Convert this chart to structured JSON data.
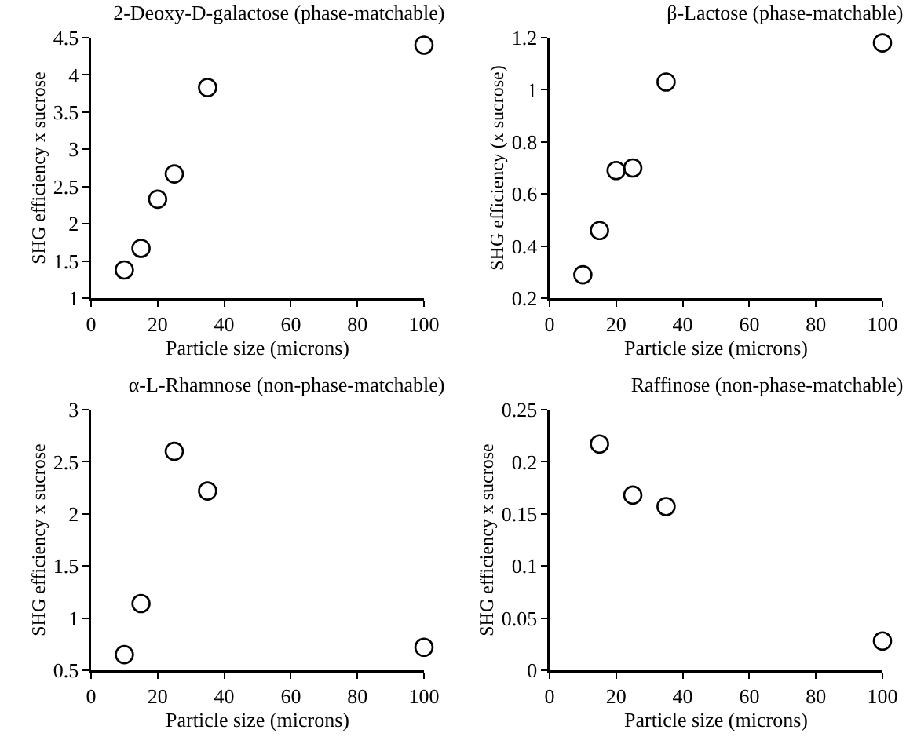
{
  "chart_data": [
    {
      "type": "scatter",
      "title": "2-Deoxy-D-galactose (phase-matchable)",
      "xlabel": "Particle size (microns)",
      "ylabel": "SHG efficiency x sucrose",
      "x": [
        10,
        15,
        20,
        25,
        35,
        100
      ],
      "values": [
        1.38,
        1.67,
        2.33,
        2.67,
        3.83,
        4.4
      ],
      "color": "#000000",
      "marker": "circle",
      "xlim": [
        0,
        100
      ],
      "xticks": [
        0,
        20,
        40,
        60,
        80,
        100
      ],
      "ylim": [
        1,
        4.5
      ],
      "yticks": [
        1,
        1.5,
        2,
        2.5,
        3,
        3.5,
        4,
        4.5
      ]
    },
    {
      "type": "scatter",
      "title": "β-Lactose (phase-matchable)",
      "xlabel": "Particle size (microns)",
      "ylabel": "SHG efficiency (x sucrose)",
      "x": [
        10,
        15,
        20,
        25,
        35,
        100
      ],
      "values": [
        0.29,
        0.46,
        0.69,
        0.7,
        1.03,
        1.18
      ],
      "color": "#000000",
      "marker": "circle",
      "xlim": [
        0,
        100
      ],
      "xticks": [
        0,
        20,
        40,
        60,
        80,
        100
      ],
      "ylim": [
        0.2,
        1.2
      ],
      "yticks": [
        0.2,
        0.4,
        0.6,
        0.8,
        1,
        1.2
      ]
    },
    {
      "type": "scatter",
      "title": "α-L-Rhamnose (non-phase-matchable)",
      "xlabel": "Particle size (microns)",
      "ylabel": "SHG efficiency x sucrose",
      "x": [
        10,
        15,
        25,
        35,
        100
      ],
      "values": [
        0.65,
        1.14,
        2.6,
        2.22,
        0.72
      ],
      "color": "#000000",
      "marker": "circle",
      "xlim": [
        0,
        100
      ],
      "xticks": [
        0,
        20,
        40,
        60,
        80,
        100
      ],
      "ylim": [
        0.5,
        3
      ],
      "yticks": [
        0.5,
        1,
        1.5,
        2,
        2.5,
        3
      ]
    },
    {
      "type": "scatter",
      "title": "Raffinose (non-phase-matchable)",
      "xlabel": "Particle size (microns)",
      "ylabel": "SHG efficiency x sucrose",
      "x": [
        15,
        25,
        35,
        100
      ],
      "values": [
        0.217,
        0.168,
        0.157,
        0.028
      ],
      "color": "#000000",
      "marker": "circle",
      "xlim": [
        0,
        100
      ],
      "xticks": [
        0,
        20,
        40,
        60,
        80,
        100
      ],
      "ylim": [
        0,
        0.25
      ],
      "yticks": [
        0,
        0.05,
        0.1,
        0.15,
        0.2,
        0.25
      ]
    }
  ]
}
